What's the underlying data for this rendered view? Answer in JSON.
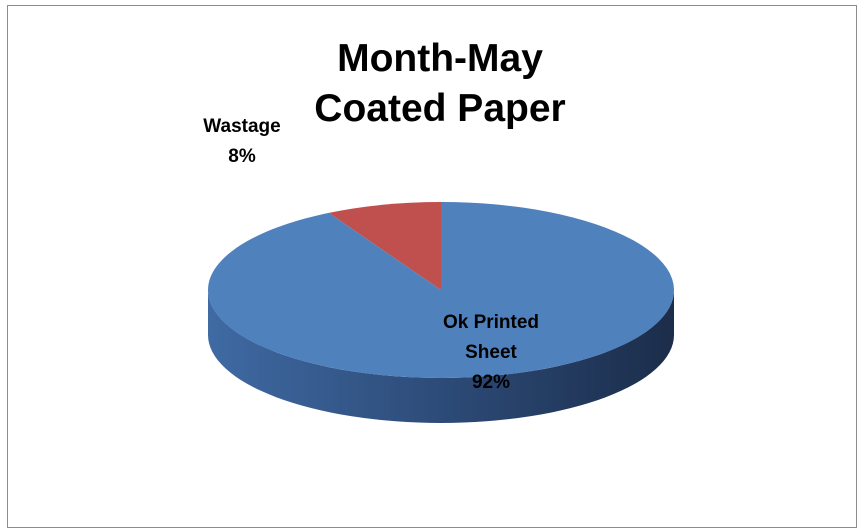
{
  "chart_data": {
    "type": "pie",
    "title_lines": [
      "Month-May",
      "Coated Paper"
    ],
    "slices": [
      {
        "label_lines": [
          "Wastage"
        ],
        "value": 8,
        "value_label": "8%",
        "color": "#c0504d",
        "side_color": "#7f2f2c"
      },
      {
        "label_lines": [
          "Ok Printed",
          "Sheet"
        ],
        "value": 92,
        "value_label": "92%",
        "color": "#4f81bd",
        "side_color": "#23375a"
      }
    ],
    "legend": "none",
    "style": "3d"
  }
}
